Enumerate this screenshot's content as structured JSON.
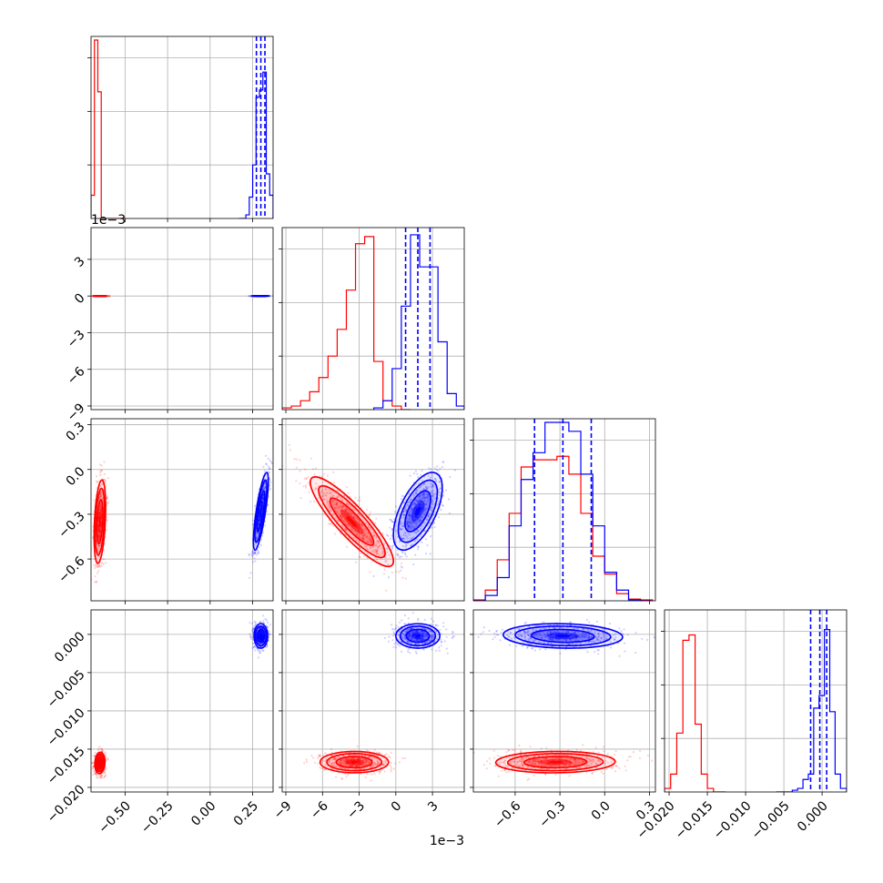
{
  "colors": {
    "series_a": "#ff0000",
    "series_b": "#0000ff",
    "grid": "#b0b0b0"
  },
  "chart_data": {
    "type": "corner",
    "grid": true,
    "parameters": [
      {
        "lim": [
          -0.7,
          0.37
        ],
        "ticks": [
          -0.5,
          -0.25,
          0.0,
          0.25
        ],
        "labels": [
          "−0.50",
          "−0.25",
          "0.00",
          "0.25"
        ],
        "offset": ""
      },
      {
        "lim": [
          -9.3,
          5.6
        ],
        "ticks": [
          -9,
          -6,
          -3,
          0,
          3
        ],
        "labels": [
          "−9",
          "−6",
          "−3",
          "0",
          "3"
        ],
        "offset": "1e−3"
      },
      {
        "lim": [
          -0.88,
          0.34
        ],
        "ticks": [
          -0.6,
          -0.3,
          0.0,
          0.3
        ],
        "labels": [
          "−0.6",
          "−0.3",
          "0.0",
          "0.3"
        ],
        "offset": ""
      },
      {
        "lim": [
          -0.0206,
          0.0032
        ],
        "ticks": [
          -0.02,
          -0.015,
          -0.01,
          -0.005,
          0.0
        ],
        "labels": [
          "−0.020",
          "−0.015",
          "−0.010",
          "−0.005",
          "0.000"
        ],
        "offset": ""
      }
    ],
    "series": [
      {
        "color": "red",
        "histograms": [
          {
            "edges": [
              -0.7,
              -0.68,
              -0.66,
              -0.64,
              -0.62,
              -0.6,
              -0.58,
              -0.56,
              -0.54,
              -0.52,
              -0.5
            ],
            "counts": [
              0.13,
              1.0,
              0.71,
              0.0,
              0,
              0,
              0,
              0,
              0,
              0
            ]
          },
          {
            "edges": [
              -9.3,
              -8.55,
              -7.8,
              -7.05,
              -6.3,
              -5.55,
              -4.8,
              -4.05,
              -3.3,
              -2.55,
              -1.8,
              -1.05,
              -0.3,
              0.45,
              1.2
            ],
            "counts": [
              0.01,
              0.02,
              0.05,
              0.1,
              0.18,
              0.3,
              0.45,
              0.67,
              0.93,
              0.97,
              0.27,
              0.05,
              0.02,
              0.0
            ]
          },
          {
            "edges": [
              -0.88,
              -0.8,
              -0.72,
              -0.64,
              -0.56,
              -0.48,
              -0.4,
              -0.32,
              -0.24,
              -0.16,
              -0.08,
              0.0,
              0.08,
              0.16,
              0.24,
              0.32
            ],
            "counts": [
              0.005,
              0.06,
              0.23,
              0.49,
              0.75,
              0.79,
              0.79,
              0.81,
              0.71,
              0.49,
              0.25,
              0.15,
              0.04,
              0.01,
              0.005
            ]
          },
          {
            "edges": [
              -0.0206,
              -0.0198,
              -0.019,
              -0.0182,
              -0.0174,
              -0.0166,
              -0.0158,
              -0.015,
              -0.0142,
              -0.0134,
              -0.0126
            ],
            "counts": [
              0.02,
              0.1,
              0.33,
              0.85,
              0.88,
              0.38,
              0.1,
              0.02,
              0.0,
              0.0
            ]
          }
        ],
        "blobs": [
          {
            "row": 1,
            "col": 0,
            "mean": [
              -0.645,
              -0.0038
            ],
            "sd": [
              0.018,
              0.0011
            ],
            "rho": -0.55
          },
          {
            "row": 2,
            "col": 0,
            "mean": [
              -0.648,
              -0.35
            ],
            "sd": [
              0.017,
              0.14
            ],
            "rho": 0.35
          },
          {
            "row": 2,
            "col": 1,
            "mean": [
              -3.6,
              -0.35
            ],
            "sd": [
              1.7,
              0.15
            ],
            "rho": -0.88
          },
          {
            "row": 3,
            "col": 0,
            "mean": [
              -0.648,
              -0.0168
            ],
            "sd": [
              0.015,
              0.0007
            ],
            "rho": 0.1
          },
          {
            "row": 3,
            "col": 1,
            "mean": [
              -3.4,
              -0.0167
            ],
            "sd": [
              1.4,
              0.0007
            ],
            "rho": 0.0
          },
          {
            "row": 3,
            "col": 2,
            "mean": [
              -0.33,
              -0.0167
            ],
            "sd": [
              0.2,
              0.0007
            ],
            "rho": 0.05
          }
        ]
      },
      {
        "color": "blue",
        "quantiles": [
          [
            0.272,
            0.298,
            0.322
          ],
          [
            0.8,
            1.8,
            2.8
          ],
          [
            -0.47,
            -0.28,
            -0.09
          ],
          [
            -0.0015,
            -0.0003,
            0.0006
          ]
        ],
        "histograms": [
          {
            "edges": [
              0.17,
              0.19,
              0.21,
              0.23,
              0.25,
              0.27,
              0.29,
              0.31,
              0.33,
              0.35,
              0.37
            ],
            "counts": [
              0.0,
              0.0,
              0.02,
              0.12,
              0.3,
              0.68,
              0.72,
              0.82,
              0.25,
              0.13
            ]
          },
          {
            "edges": [
              -1.8,
              -1.05,
              -0.3,
              0.45,
              1.2,
              1.95,
              2.7,
              3.45,
              4.2,
              4.95,
              5.6
            ],
            "counts": [
              0.01,
              0.05,
              0.23,
              0.58,
              0.98,
              0.8,
              0.8,
              0.38,
              0.09,
              0.02
            ]
          },
          {
            "edges": [
              -0.88,
              -0.8,
              -0.72,
              -0.64,
              -0.56,
              -0.48,
              -0.4,
              -0.32,
              -0.24,
              -0.16,
              -0.08,
              0.0,
              0.08,
              0.16,
              0.24,
              0.32
            ],
            "counts": [
              0.0,
              0.03,
              0.13,
              0.42,
              0.68,
              0.83,
              1.0,
              1.0,
              0.95,
              0.71,
              0.42,
              0.16,
              0.06,
              0.005,
              0.0
            ]
          },
          {
            "edges": [
              -0.006,
              -0.0053,
              -0.0046,
              -0.0039,
              -0.0032,
              -0.0025,
              -0.0018,
              -0.0011,
              -0.0004,
              0.0003,
              0.001,
              0.0017,
              0.0024,
              0.0032
            ],
            "counts": [
              0.0,
              0.0,
              0.0,
              0.01,
              0.02,
              0.07,
              0.1,
              0.47,
              0.54,
              0.91,
              0.45,
              0.1,
              0.02
            ]
          }
        ],
        "blobs": [
          {
            "row": 1,
            "col": 0,
            "mean": [
              0.298,
              0.0018
            ],
            "sd": [
              0.022,
              0.001
            ],
            "rho": 0.55
          },
          {
            "row": 2,
            "col": 0,
            "mean": [
              0.298,
              -0.28
            ],
            "sd": [
              0.022,
              0.13
            ],
            "rho": 0.78
          },
          {
            "row": 2,
            "col": 1,
            "mean": [
              1.8,
              -0.28
            ],
            "sd": [
              1.0,
              0.13
            ],
            "rho": 0.6
          },
          {
            "row": 3,
            "col": 0,
            "mean": [
              0.298,
              -0.0002
            ],
            "sd": [
              0.02,
              0.0008
            ],
            "rho": 0.0
          },
          {
            "row": 3,
            "col": 1,
            "mean": [
              1.8,
              -0.0002
            ],
            "sd": [
              0.9,
              0.0008
            ],
            "rho": 0.0
          },
          {
            "row": 3,
            "col": 2,
            "mean": [
              -0.28,
              -0.0002
            ],
            "sd": [
              0.2,
              0.0008
            ],
            "rho": -0.1
          }
        ]
      }
    ]
  }
}
